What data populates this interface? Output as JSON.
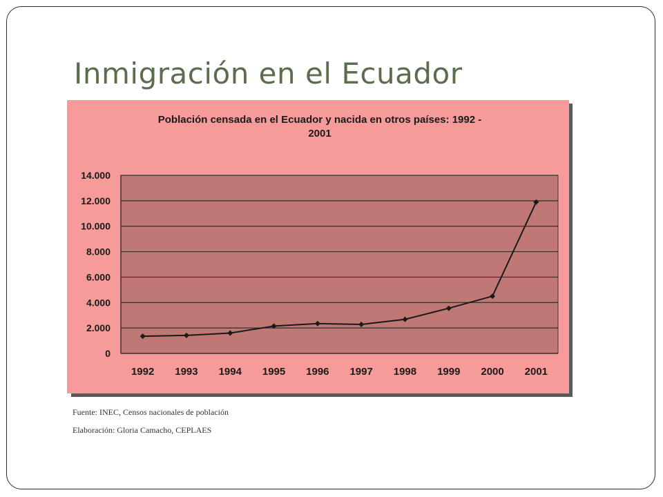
{
  "slide": {
    "title": "Inmigración en el Ecuador",
    "source": "Fuente: INEC, Censos nacionales de población",
    "credit": "Elaboración: Gloria Camacho, CEPLAES"
  },
  "chart_data": {
    "type": "line",
    "title_lines": [
      "Población censada en el Ecuador y nacida en otros países: 1992 -",
      "2001"
    ],
    "categories": [
      "1992",
      "1993",
      "1994",
      "1995",
      "1996",
      "1997",
      "1998",
      "1999",
      "2000",
      "2001"
    ],
    "series": [
      {
        "values": [
          1350,
          1420,
          1600,
          2150,
          2350,
          2280,
          2680,
          3550,
          4500,
          11900
        ]
      }
    ],
    "ylim": [
      0,
      14000
    ],
    "yticks": [
      0,
      2000,
      4000,
      6000,
      8000,
      10000,
      12000,
      14000
    ],
    "ytick_labels": [
      "0",
      "2.000",
      "4.000",
      "6.000",
      "8.000",
      "10.000",
      "12.000",
      "14.000"
    ],
    "xlabel": "",
    "ylabel": "",
    "grid": true,
    "legend": "none",
    "colors": {
      "outer_background": "#f79a9a",
      "plot_background": "#c07874",
      "gridline": "#2e2e2e",
      "line": "#1a1a1a",
      "text": "#1a1a1a"
    }
  }
}
